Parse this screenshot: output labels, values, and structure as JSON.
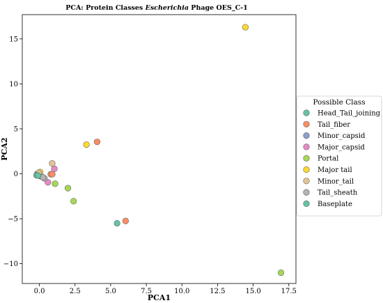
{
  "chart_data": {
    "type": "scatter",
    "title": {
      "prefix": "PCA: Protein Classes ",
      "italic": "Escherichia",
      "suffix": " Phage OES_C-1"
    },
    "xlabel": "PCA1",
    "ylabel": "PCA2",
    "xlim": [
      -1.2,
      18.0
    ],
    "ylim": [
      -12.2,
      17.7
    ],
    "xticks": [
      0.0,
      2.5,
      5.0,
      7.5,
      10.0,
      12.5,
      15.0,
      17.5
    ],
    "xtick_labels": [
      "0.0",
      "2.5",
      "5.0",
      "7.5",
      "10.0",
      "12.5",
      "15.0",
      "17.5"
    ],
    "yticks": [
      -10,
      -5,
      0,
      5,
      10,
      15
    ],
    "ytick_labels": [
      "−10",
      "−5",
      "0",
      "5",
      "10",
      "15"
    ],
    "grid": false,
    "legend": {
      "title": "Possible Class",
      "placement": "outside-right"
    },
    "series": [
      {
        "name": "Head_Tail_joining",
        "color": "#66c2a5",
        "points": [
          [
            5.45,
            -5.5
          ],
          [
            0.05,
            -0.25
          ]
        ]
      },
      {
        "name": "Tail_fiber",
        "color": "#fc8d62",
        "points": [
          [
            4.05,
            3.55
          ],
          [
            6.05,
            -5.25
          ],
          [
            0.8,
            -0.05
          ],
          [
            0.9,
            -0.05
          ]
        ]
      },
      {
        "name": "Minor_capsid",
        "color": "#8da0cb",
        "points": [
          [
            0.2,
            -0.35
          ],
          [
            -0.15,
            0.0
          ]
        ]
      },
      {
        "name": "Major_capsid",
        "color": "#e78ac3",
        "points": [
          [
            1.05,
            0.55
          ],
          [
            0.6,
            -0.95
          ]
        ]
      },
      {
        "name": "Portal",
        "color": "#a6d854",
        "points": [
          [
            16.95,
            -11.0
          ],
          [
            2.4,
            -3.05
          ],
          [
            2.0,
            -1.6
          ],
          [
            1.1,
            -1.1
          ]
        ]
      },
      {
        "name": "Major tail",
        "color": "#ffd92f",
        "points": [
          [
            14.45,
            16.3
          ],
          [
            3.3,
            3.25
          ],
          [
            0.05,
            0.2
          ]
        ]
      },
      {
        "name": "Minor_tail",
        "color": "#e5c494",
        "points": [
          [
            0.9,
            1.15
          ],
          [
            -0.05,
            0.1
          ]
        ]
      },
      {
        "name": "Tail_sheath",
        "color": "#b3b3b3",
        "points": [
          [
            0.35,
            -0.5
          ],
          [
            0.25,
            -0.4
          ]
        ]
      },
      {
        "name": "Baseplate",
        "color": "#66c2a5",
        "points": [
          [
            -0.2,
            -0.15
          ],
          [
            -0.1,
            -0.2
          ]
        ]
      }
    ]
  }
}
